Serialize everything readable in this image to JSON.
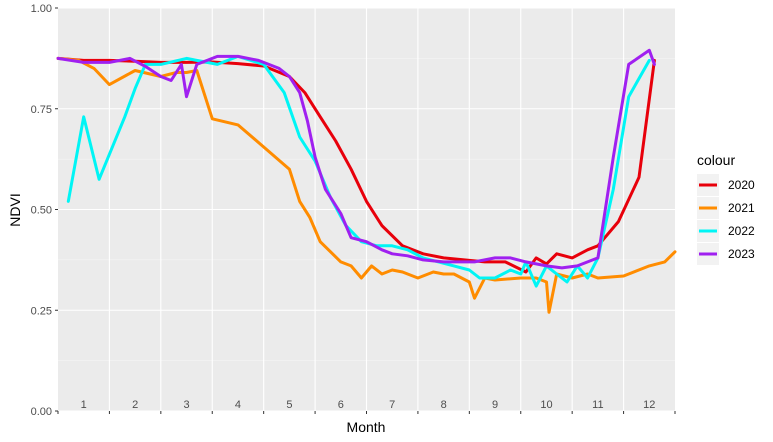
{
  "chart_data": {
    "type": "line",
    "xlabel": "Month",
    "ylabel": "NDVI",
    "ylim": [
      0,
      1
    ],
    "xlim": [
      0.5,
      12.5
    ],
    "yticks": [
      0.0,
      0.25,
      0.5,
      0.75,
      1.0
    ],
    "ytick_labels": [
      "0.00",
      "0.25",
      "0.50",
      "0.75",
      "1.00"
    ],
    "month_labels": [
      "1",
      "2",
      "3",
      "4",
      "5",
      "6",
      "7",
      "8",
      "9",
      "10",
      "11",
      "12"
    ],
    "grid": true,
    "legend": {
      "title": "colour",
      "position": "right"
    },
    "series": [
      {
        "name": "2020",
        "color": "#e8000b",
        "x": [
          0.5,
          1.0,
          1.5,
          2.0,
          2.5,
          3.0,
          3.5,
          4.0,
          4.5,
          5.0,
          5.3,
          5.6,
          5.9,
          6.2,
          6.5,
          6.8,
          7.2,
          7.6,
          8.0,
          8.4,
          8.8,
          9.2,
          9.6,
          9.8,
          10.0,
          10.2,
          10.5,
          10.8,
          11.0,
          11.4,
          11.8,
          12.1
        ],
        "y": [
          0.875,
          0.87,
          0.87,
          0.868,
          0.865,
          0.865,
          0.866,
          0.862,
          0.856,
          0.83,
          0.79,
          0.73,
          0.67,
          0.6,
          0.52,
          0.46,
          0.41,
          0.39,
          0.38,
          0.375,
          0.37,
          0.37,
          0.345,
          0.38,
          0.365,
          0.39,
          0.38,
          0.4,
          0.41,
          0.47,
          0.58,
          0.87
        ]
      },
      {
        "name": "2021",
        "color": "#ff8c00",
        "x": [
          0.5,
          0.9,
          1.2,
          1.5,
          2.0,
          2.5,
          2.8,
          3.0,
          3.2,
          3.5,
          4.0,
          4.5,
          5.0,
          5.2,
          5.4,
          5.6,
          6.0,
          6.2,
          6.4,
          6.6,
          6.8,
          7.0,
          7.2,
          7.5,
          7.8,
          8.0,
          8.2,
          8.5,
          8.6,
          8.8,
          9.0,
          9.5,
          9.8,
          10.0,
          10.05,
          10.2,
          10.5,
          10.8,
          11.0,
          11.5,
          12.0,
          12.3,
          12.5
        ],
        "y": [
          0.875,
          0.87,
          0.85,
          0.81,
          0.845,
          0.83,
          0.84,
          0.84,
          0.845,
          0.725,
          0.71,
          0.655,
          0.6,
          0.52,
          0.48,
          0.42,
          0.37,
          0.36,
          0.33,
          0.36,
          0.34,
          0.35,
          0.345,
          0.33,
          0.345,
          0.34,
          0.34,
          0.32,
          0.28,
          0.33,
          0.325,
          0.33,
          0.33,
          0.32,
          0.245,
          0.34,
          0.33,
          0.34,
          0.33,
          0.335,
          0.36,
          0.37,
          0.395
        ]
      },
      {
        "name": "2022",
        "color": "#00f5f5",
        "x": [
          0.7,
          1.0,
          1.3,
          1.8,
          2.0,
          2.2,
          2.5,
          3.0,
          3.6,
          4.0,
          4.5,
          4.9,
          5.2,
          5.5,
          5.8,
          6.1,
          6.4,
          6.7,
          7.0,
          7.3,
          7.6,
          7.9,
          8.2,
          8.5,
          8.7,
          9.0,
          9.3,
          9.5,
          9.6,
          9.8,
          10.0,
          10.2,
          10.4,
          10.6,
          10.8,
          11.0,
          11.3,
          11.6,
          12.0
        ],
        "y": [
          0.52,
          0.73,
          0.575,
          0.73,
          0.8,
          0.86,
          0.86,
          0.875,
          0.86,
          0.88,
          0.86,
          0.79,
          0.68,
          0.62,
          0.53,
          0.46,
          0.42,
          0.41,
          0.41,
          0.4,
          0.38,
          0.37,
          0.36,
          0.35,
          0.33,
          0.33,
          0.35,
          0.34,
          0.37,
          0.31,
          0.36,
          0.34,
          0.32,
          0.36,
          0.33,
          0.38,
          0.55,
          0.78,
          0.87
        ]
      },
      {
        "name": "2023",
        "color": "#a020f0",
        "x": [
          0.5,
          1.0,
          1.5,
          1.9,
          2.2,
          2.5,
          2.7,
          2.9,
          3.0,
          3.2,
          3.6,
          4.0,
          4.4,
          4.8,
          5.0,
          5.2,
          5.35,
          5.5,
          5.7,
          6.0,
          6.2,
          6.5,
          6.8,
          7.0,
          7.3,
          7.6,
          8.0,
          8.3,
          8.6,
          9.0,
          9.3,
          9.6,
          10.0,
          10.3,
          10.6,
          11.0,
          11.3,
          11.6,
          12.0,
          12.1
        ],
        "y": [
          0.875,
          0.865,
          0.865,
          0.875,
          0.855,
          0.83,
          0.82,
          0.86,
          0.78,
          0.86,
          0.88,
          0.88,
          0.87,
          0.85,
          0.83,
          0.79,
          0.72,
          0.63,
          0.55,
          0.49,
          0.43,
          0.42,
          0.4,
          0.39,
          0.385,
          0.375,
          0.37,
          0.37,
          0.37,
          0.38,
          0.38,
          0.37,
          0.36,
          0.355,
          0.36,
          0.38,
          0.63,
          0.86,
          0.895,
          0.86
        ]
      }
    ]
  }
}
